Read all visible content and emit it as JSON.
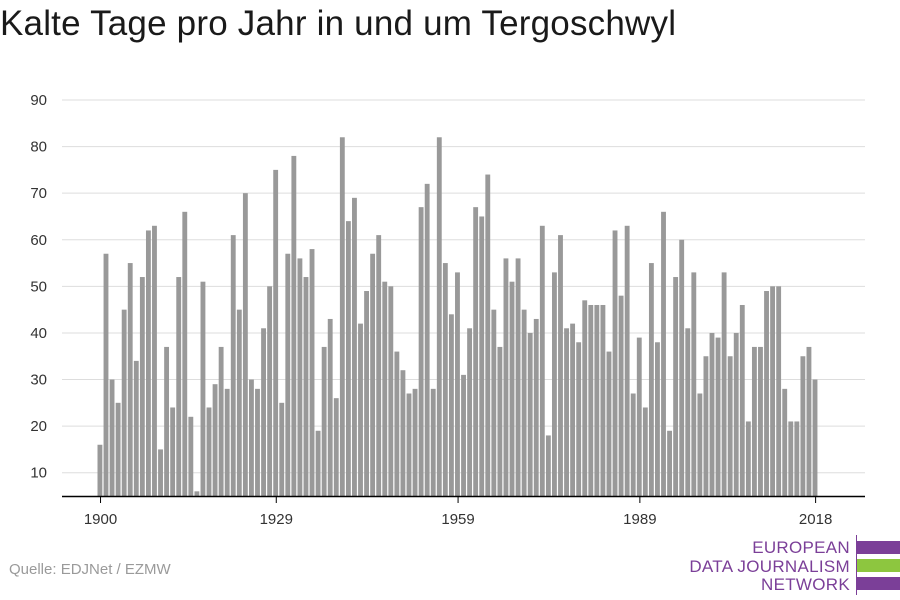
{
  "title": "Kalte Tage pro Jahr in und um Tergoschwyl",
  "source": "Quelle: EDJNet / EZMW",
  "logo": {
    "lines": [
      "EUROPEAN",
      "DATA JOURNALISM",
      "NETWORK"
    ],
    "colors": {
      "purple": "#7b3f98",
      "green": "#8dc63f"
    }
  },
  "colors": {
    "bar": "#999999",
    "grid": "#dddddd",
    "axis": "#000000"
  },
  "chart_data": {
    "type": "bar",
    "x_start": 1900,
    "x": [
      1900,
      1901,
      1902,
      1903,
      1904,
      1905,
      1906,
      1907,
      1908,
      1909,
      1910,
      1911,
      1912,
      1913,
      1914,
      1915,
      1916,
      1917,
      1918,
      1919,
      1920,
      1921,
      1922,
      1923,
      1924,
      1925,
      1926,
      1927,
      1928,
      1929,
      1930,
      1931,
      1932,
      1933,
      1934,
      1935,
      1936,
      1937,
      1938,
      1939,
      1940,
      1941,
      1942,
      1943,
      1944,
      1945,
      1946,
      1947,
      1948,
      1949,
      1950,
      1951,
      1952,
      1953,
      1954,
      1955,
      1956,
      1957,
      1958,
      1959,
      1960,
      1961,
      1962,
      1963,
      1964,
      1965,
      1966,
      1967,
      1968,
      1969,
      1970,
      1971,
      1972,
      1973,
      1974,
      1975,
      1976,
      1977,
      1978,
      1979,
      1980,
      1981,
      1982,
      1983,
      1984,
      1985,
      1986,
      1987,
      1988,
      1989,
      1990,
      1991,
      1992,
      1993,
      1994,
      1995,
      1996,
      1997,
      1998,
      1999,
      2000,
      2001,
      2002,
      2003,
      2004,
      2005,
      2006,
      2007,
      2008,
      2009,
      2010,
      2011,
      2012,
      2013,
      2014,
      2015,
      2016,
      2017,
      2018
    ],
    "values": [
      16,
      57,
      30,
      25,
      45,
      55,
      34,
      52,
      62,
      63,
      15,
      37,
      24,
      52,
      66,
      22,
      6,
      51,
      24,
      29,
      37,
      28,
      61,
      45,
      70,
      30,
      28,
      41,
      50,
      75,
      25,
      57,
      78,
      56,
      52,
      58,
      19,
      37,
      43,
      26,
      82,
      64,
      69,
      42,
      49,
      57,
      61,
      51,
      50,
      36,
      32,
      27,
      28,
      67,
      72,
      28,
      82,
      55,
      44,
      53,
      31,
      41,
      67,
      65,
      74,
      45,
      37,
      56,
      51,
      56,
      45,
      40,
      43,
      63,
      18,
      53,
      61,
      41,
      42,
      38,
      47,
      46,
      46,
      46,
      36,
      62,
      48,
      63,
      27,
      39,
      24,
      55,
      38,
      66,
      19,
      52,
      60,
      41,
      53,
      27,
      35,
      40,
      39,
      53,
      35,
      40,
      46,
      21,
      37,
      37,
      49,
      50,
      50,
      28,
      21,
      21,
      35,
      37,
      30
    ],
    "xticks": [
      1900,
      1929,
      1959,
      1989,
      2018
    ],
    "yticks": [
      10,
      20,
      30,
      40,
      50,
      60,
      70,
      80,
      90
    ],
    "ylim": [
      5,
      90
    ],
    "grid": true,
    "xlabel": "",
    "ylabel": ""
  }
}
